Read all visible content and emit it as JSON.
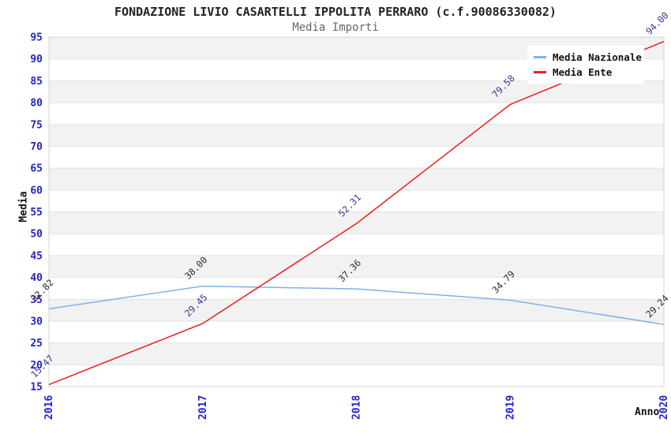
{
  "chart_data": {
    "type": "line",
    "title": "FONDAZIONE LIVIO CASARTELLI IPPOLITA PERRARO (c.f.90086330082)",
    "subtitle": "Media Importi",
    "xlabel": "Anno",
    "ylabel": "Media",
    "x": [
      2016,
      2017,
      2018,
      2019,
      2020
    ],
    "series": [
      {
        "name": "Media Nazionale",
        "color": "#7fb2e5",
        "label_color": "#2b2b2b",
        "values": [
          32.82,
          38.0,
          37.36,
          34.79,
          29.24
        ]
      },
      {
        "name": "Media Ente",
        "color": "#ee1c1c",
        "label_color": "#33339c",
        "values": [
          15.47,
          29.45,
          52.31,
          79.58,
          94.0
        ]
      }
    ],
    "ylim": [
      15,
      95
    ],
    "ytick_step": 5,
    "grid": "horizontal-bands",
    "legend_position": "top-right",
    "colors": {
      "tick_label": "#2222d6",
      "band_gray": "#f2f2f2",
      "grid_line": "#e3e3e3",
      "plot_border": "#d4d4d4",
      "title": "#222222",
      "subtitle": "#666666"
    }
  }
}
